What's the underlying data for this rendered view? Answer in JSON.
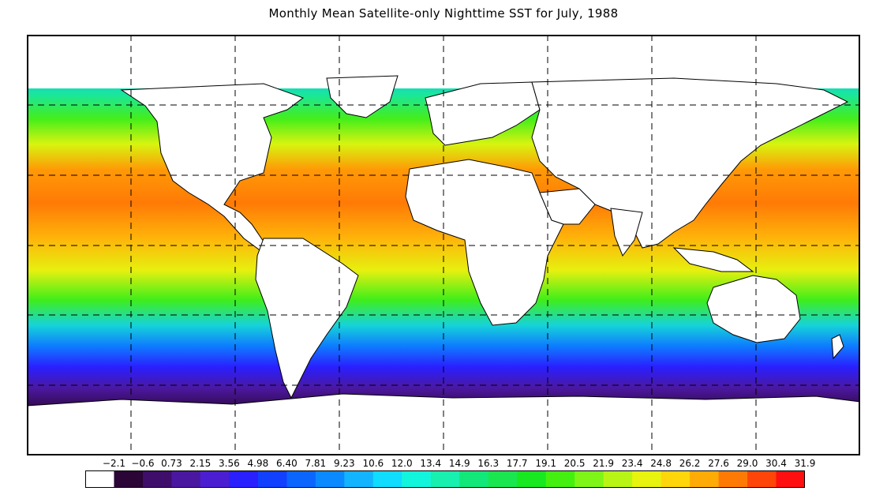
{
  "title": "Monthly Mean Satellite-only Nighttime SST for July, 1988",
  "colorbar": {
    "labels": [
      "−2.1",
      "−0.6",
      "0.73",
      "2.15",
      "3.56",
      "4.98",
      "6.40",
      "7.81",
      "9.23",
      "10.6",
      "12.0",
      "13.4",
      "14.9",
      "16.3",
      "17.7",
      "19.1",
      "20.5",
      "21.9",
      "23.4",
      "24.8",
      "26.2",
      "27.6",
      "29.0",
      "30.4",
      "31.9"
    ],
    "colors": [
      "#ffffff",
      "#2a0535",
      "#3f0e6b",
      "#4a18a0",
      "#4b1fd1",
      "#2a1fff",
      "#1140ff",
      "#0b66ff",
      "#0b8aff",
      "#13b4ff",
      "#10dcff",
      "#12f5dd",
      "#17f0ae",
      "#12e87a",
      "#1ae650",
      "#18e81f",
      "#44f00f",
      "#7ef516",
      "#b8f514",
      "#e8f40d",
      "#ffd60a",
      "#ffab05",
      "#ff7a04",
      "#ff4608",
      "#ff0f0f"
    ]
  },
  "grid": {
    "lon_lines": 8,
    "lat_lines": 5,
    "style": "dashed"
  }
}
